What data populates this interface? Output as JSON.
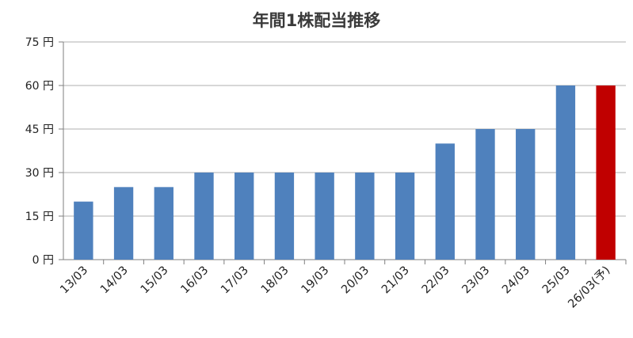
{
  "chart_data": {
    "type": "bar",
    "title": "年間1株配当推移",
    "categories": [
      "13/03",
      "14/03",
      "15/03",
      "16/03",
      "17/03",
      "18/03",
      "19/03",
      "20/03",
      "21/03",
      "22/03",
      "23/03",
      "24/03",
      "25/03",
      "26/03(予)"
    ],
    "values": [
      20,
      25,
      25,
      30,
      30,
      30,
      30,
      30,
      30,
      40,
      45,
      45,
      60,
      60
    ],
    "y_ticks": [
      "0 円",
      "15 円",
      "30 円",
      "45 円",
      "60 円",
      "75 円"
    ],
    "ylim": [
      0,
      75
    ],
    "grid": true,
    "colors": {
      "actual": "#4f81bd",
      "forecast": "#c00000",
      "grid": "#bfbfbf",
      "axis": "#7f7f7f"
    },
    "forecast_index": 13
  }
}
